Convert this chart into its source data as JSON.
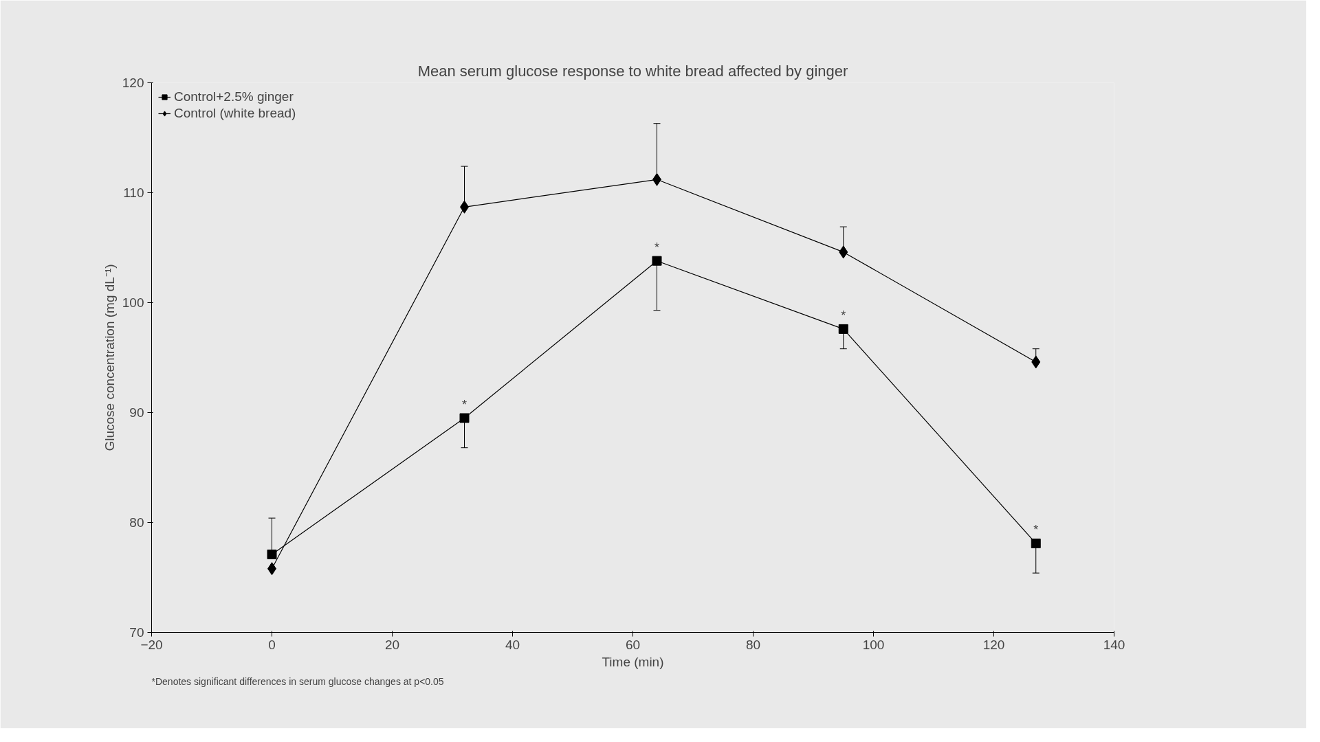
{
  "chart_data": {
    "type": "line",
    "title": "Mean serum glucose response to white bread affected by ginger",
    "xlabel": "Time (min)",
    "ylabel": "Glucose concentration (mg dL⁻¹)",
    "x": [
      0,
      32,
      64,
      95,
      127
    ],
    "series": [
      {
        "name": "Control+2.5% ginger",
        "color": "#000000",
        "marker": "square",
        "values": [
          77.1,
          89.5,
          103.8,
          97.6,
          78.1
        ],
        "errors": [
          [
            77.1,
            80.4
          ],
          [
            86.8,
            89.5
          ],
          [
            99.3,
            103.8
          ],
          [
            95.8,
            97.6
          ],
          [
            75.4,
            78.1
          ]
        ]
      },
      {
        "name": "Control (white bread)",
        "color": "#000000",
        "marker": "diamond",
        "values": [
          75.8,
          108.7,
          111.2,
          104.6,
          94.6
        ],
        "errors": [
          null,
          [
            108.7,
            112.4
          ],
          [
            111.2,
            116.3
          ],
          [
            104.6,
            106.9
          ],
          [
            94.6,
            95.8
          ]
        ]
      }
    ],
    "xlim": [
      -20,
      140
    ],
    "xticks": [
      -20,
      0,
      20,
      40,
      60,
      80,
      100,
      120,
      140
    ],
    "ylim": [
      70,
      120
    ],
    "yticks": [
      70,
      80,
      90,
      100,
      110,
      120
    ],
    "legend": "top left",
    "line_style": "solid",
    "annotations": [
      {
        "text": "*",
        "x": 32,
        "y": 89.5
      },
      {
        "text": "*",
        "x": 64,
        "y": 103.8
      },
      {
        "text": "*",
        "x": 95,
        "y": 97.6
      },
      {
        "text": "*",
        "x": 127,
        "y": 78.1
      },
      "*Denotes significant differences in serum glucose changes at p<0.05"
    ]
  }
}
